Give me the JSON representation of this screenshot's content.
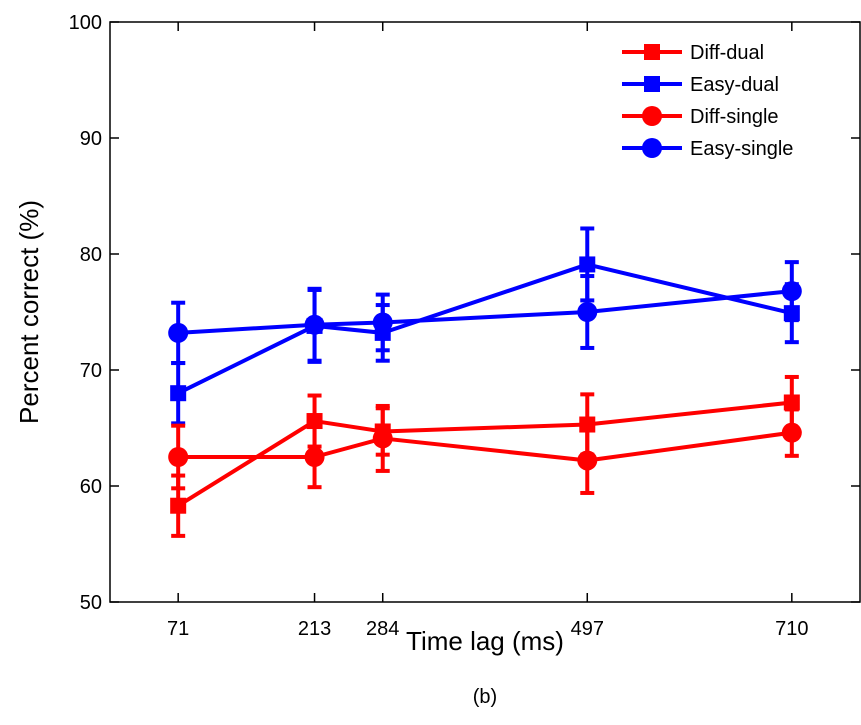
{
  "chart_data": {
    "type": "line",
    "title": "",
    "xlabel": "Time lag (ms)",
    "ylabel": "Percent correct (%)",
    "caption": "(b)",
    "xlim": [
      0,
      781
    ],
    "ylim": [
      50,
      100
    ],
    "xticks": [
      71,
      213,
      284,
      497,
      710
    ],
    "yticks": [
      50,
      60,
      70,
      80,
      90,
      100
    ],
    "x": [
      71,
      213,
      284,
      497,
      710
    ],
    "grid": false,
    "legend_position": "top-right",
    "series": [
      {
        "name": "Diff-dual",
        "marker": "square",
        "color": "#ff0000",
        "values": [
          58.3,
          65.6,
          64.7,
          65.3,
          67.2
        ],
        "errors": [
          2.6,
          2.2,
          2.0,
          2.6,
          2.2
        ]
      },
      {
        "name": "Easy-dual",
        "marker": "square",
        "color": "#0000ff",
        "values": [
          68.0,
          73.8,
          73.2,
          79.1,
          74.9
        ],
        "errors": [
          2.6,
          3.1,
          2.4,
          3.1,
          2.5
        ]
      },
      {
        "name": "Diff-single",
        "marker": "circle",
        "color": "#ff0000",
        "values": [
          62.5,
          62.5,
          64.1,
          62.2,
          64.6
        ],
        "errors": [
          2.7,
          2.6,
          2.8,
          2.8,
          2.0
        ]
      },
      {
        "name": "Easy-single",
        "marker": "circle",
        "color": "#0000ff",
        "values": [
          73.2,
          73.9,
          74.1,
          75.0,
          76.8
        ],
        "errors": [
          2.6,
          3.1,
          2.4,
          3.1,
          2.5
        ]
      }
    ]
  }
}
